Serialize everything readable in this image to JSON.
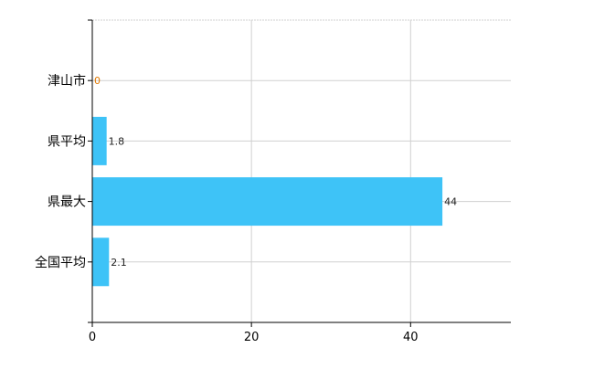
{
  "chart_data": {
    "type": "bar",
    "orientation": "horizontal",
    "categories": [
      "津山市",
      "県平均",
      "県最大",
      "全国平均"
    ],
    "values": [
      0,
      1.8,
      44,
      2.1
    ],
    "data_labels": [
      "0",
      "1.8",
      "44",
      "2.1"
    ],
    "xlim": [
      0,
      52.6
    ],
    "x_ticks": [
      0,
      20,
      40
    ],
    "x_tick_labels": [
      "0",
      "20",
      "40"
    ],
    "grid": true,
    "colors": {
      "bar": "#3ec3f7",
      "grid": "#d0d0d0",
      "axis": "#000000",
      "zero_label": "#e07800"
    }
  }
}
